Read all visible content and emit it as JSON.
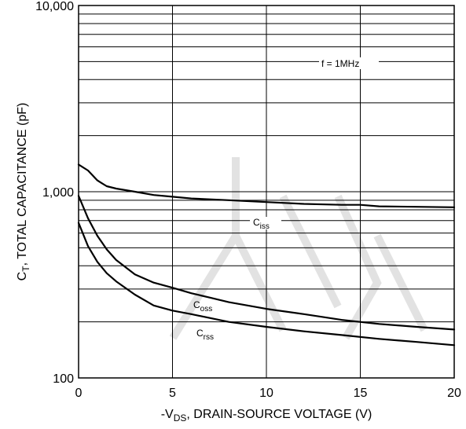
{
  "chart_data": {
    "type": "line",
    "x_scale": "linear",
    "y_scale": "log",
    "xlim": [
      0,
      20
    ],
    "ylim": [
      100,
      10000
    ],
    "x_ticks": [
      0,
      5,
      10,
      15,
      20
    ],
    "x_tick_labels": [
      "0",
      "5",
      "10",
      "15",
      "20"
    ],
    "y_tick_values": [
      100,
      1000,
      10000
    ],
    "y_tick_labels": [
      "100",
      "1,000",
      "10,000"
    ],
    "grid": true,
    "xlabel": {
      "prefix": "-V",
      "sub": "DS",
      "suffix": ", DRAIN-SOURCE VOLTAGE (V)"
    },
    "ylabel": {
      "prefix": "C",
      "sub": "T",
      "suffix": ", TOTAL CAPACITANCE (pF)"
    },
    "annotation": "f = 1MHz",
    "series": [
      {
        "name": "Ciss",
        "label_main": "C",
        "label_sub": "iss",
        "x": [
          0,
          0.5,
          1,
          1.5,
          2,
          3,
          4,
          5,
          6,
          8,
          10,
          12,
          14,
          15,
          16,
          18,
          20
        ],
        "y": [
          1400,
          1300,
          1150,
          1070,
          1040,
          1000,
          960,
          940,
          920,
          900,
          880,
          860,
          850,
          850,
          835,
          830,
          825
        ]
      },
      {
        "name": "Coss",
        "label_main": "C",
        "label_sub": "oss",
        "x": [
          0,
          0.5,
          1,
          1.5,
          2,
          3,
          4,
          5,
          6,
          7,
          8,
          10,
          12,
          14,
          16,
          18,
          20
        ],
        "y": [
          950,
          720,
          580,
          490,
          430,
          360,
          325,
          305,
          285,
          270,
          255,
          235,
          220,
          205,
          195,
          188,
          182
        ]
      },
      {
        "name": "Crss",
        "label_main": "C",
        "label_sub": "rss",
        "x": [
          0,
          0.5,
          1,
          1.5,
          2,
          3,
          4,
          5,
          6,
          8,
          10,
          12,
          14,
          16,
          18,
          20
        ],
        "y": [
          680,
          510,
          420,
          365,
          330,
          280,
          245,
          230,
          220,
          200,
          188,
          178,
          170,
          162,
          156,
          150
        ]
      }
    ]
  }
}
